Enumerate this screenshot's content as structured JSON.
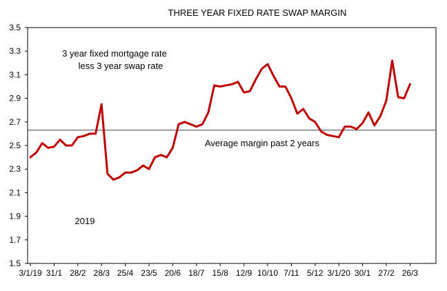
{
  "chart_data": {
    "type": "line",
    "title": "THREE YEAR FIXED RATE SWAP MARGIN",
    "xlabel": "",
    "ylabel": "",
    "ylim": [
      1.5,
      3.5
    ],
    "yticks": [
      "1.5",
      "1.7",
      "1.9",
      "2.1",
      "2.3",
      "2.5",
      "2.7",
      "2.9",
      "3.1",
      "3.3",
      "3.5"
    ],
    "xlim": [
      0,
      58
    ],
    "xtick_labels": [
      {
        "label": "3/1/19",
        "index": 0
      },
      {
        "label": "31/1",
        "index": 4
      },
      {
        "label": "28/2",
        "index": 8
      },
      {
        "label": "28/3",
        "index": 12
      },
      {
        "label": "25/4",
        "index": 16
      },
      {
        "label": "23/5",
        "index": 20
      },
      {
        "label": "20/6",
        "index": 24
      },
      {
        "label": "18/7",
        "index": 28
      },
      {
        "label": "15/8",
        "index": 32
      },
      {
        "label": "12/9",
        "index": 36
      },
      {
        "label": "10/10",
        "index": 40
      },
      {
        "label": "7/11",
        "index": 44
      },
      {
        "label": "5/12",
        "index": 48
      },
      {
        "label": "3/1/20",
        "index": 52
      },
      {
        "label": "30/1",
        "index": 56
      },
      {
        "label": "27/2",
        "index": 60
      },
      {
        "label": "26/3",
        "index": 64
      }
    ],
    "grid": false,
    "series": [
      {
        "name": "",
        "color": "#c00000",
        "values": [
          2.4,
          2.44,
          2.52,
          2.48,
          2.49,
          2.55,
          2.5,
          2.5,
          2.57,
          2.58,
          2.6,
          2.6,
          2.85,
          2.26,
          2.21,
          2.23,
          2.27,
          2.27,
          2.29,
          2.33,
          2.3,
          2.4,
          2.42,
          2.4,
          2.48,
          2.68,
          2.7,
          2.68,
          2.66,
          2.68,
          2.78,
          3.01,
          3.0,
          3.01,
          3.02,
          3.04,
          2.95,
          2.96,
          3.06,
          3.15,
          3.19,
          3.09,
          3.0,
          3.0,
          2.9,
          2.77,
          2.81,
          2.73,
          2.7,
          2.62,
          2.59,
          2.58,
          2.57,
          2.66,
          2.66,
          2.64,
          2.69,
          2.78,
          2.67,
          2.75,
          2.88,
          3.22,
          2.91,
          2.9,
          3.02
        ]
      }
    ],
    "reference_line": {
      "value": 2.63,
      "label": "Average margin past 2 years",
      "color": "#404040"
    },
    "annotations": [
      {
        "text": "3 year fixed mortgage rate"
      },
      {
        "text": "less 3 year swap rate"
      },
      {
        "text": "2019"
      }
    ]
  }
}
